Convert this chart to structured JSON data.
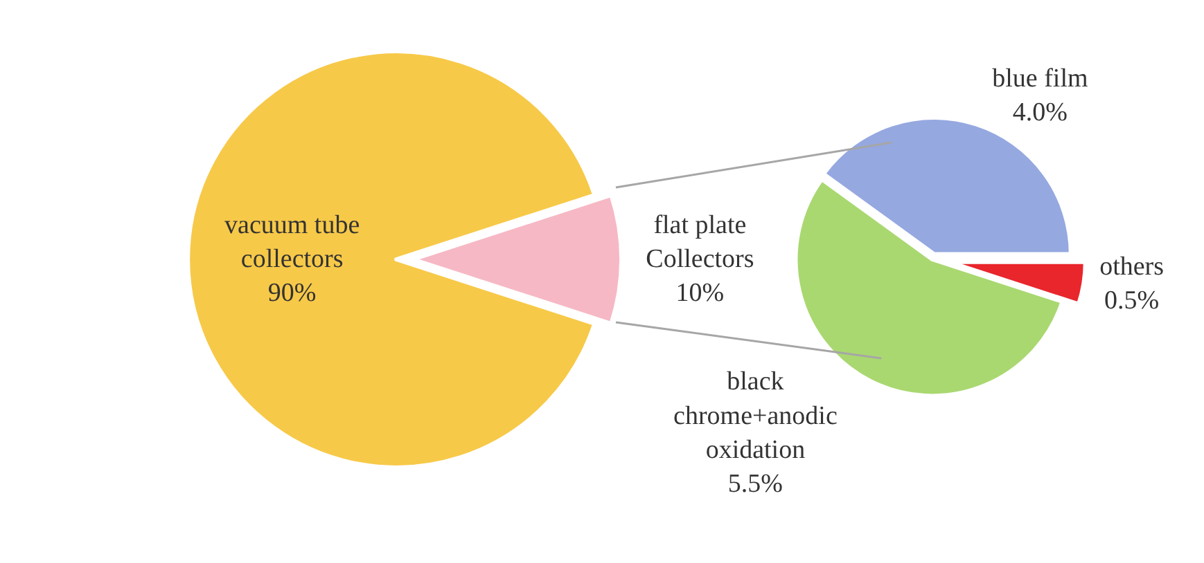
{
  "chart_data": [
    {
      "type": "pie",
      "categories": [
        "vacuum tube collectors",
        "flat plate Collectors"
      ],
      "values": [
        90,
        10
      ],
      "value_labels": [
        "90%",
        "10%"
      ],
      "colors": [
        "#f7c948",
        "#f6b8c4"
      ],
      "legend": false
    },
    {
      "type": "pie",
      "categories": [
        "blue film",
        "others",
        "black chrome+anodic oxidation"
      ],
      "values": [
        4.0,
        0.5,
        5.5
      ],
      "value_labels": [
        "4.0%",
        "0.5%",
        "5.5%"
      ],
      "colors": [
        "#95a8e0",
        "#e8262c",
        "#a9d870"
      ],
      "legend": false
    }
  ]
}
